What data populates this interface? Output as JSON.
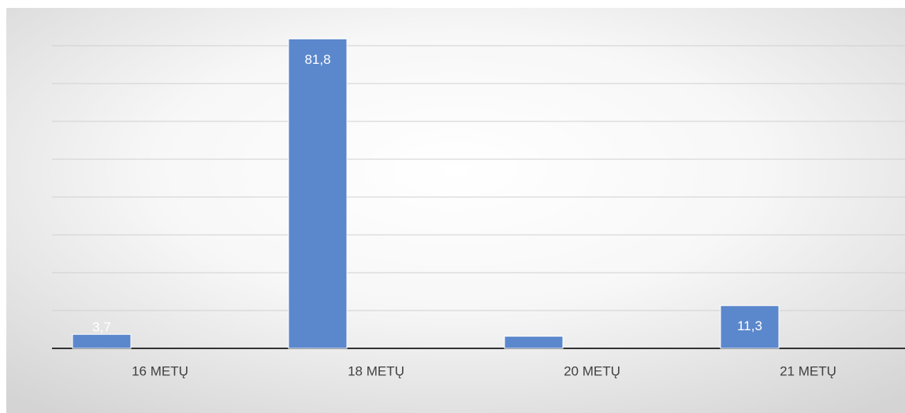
{
  "chart_data": {
    "type": "bar",
    "categories": [
      "16 METŲ",
      "18 METŲ",
      "20 METŲ",
      "21 METŲ"
    ],
    "values": [
      3.7,
      81.8,
      3.2,
      11.3
    ],
    "value_labels": [
      "3,7",
      "81,8",
      null,
      "11,3"
    ],
    "color": "#5b87cc",
    "ylim": [
      0,
      90
    ],
    "yticks": [
      0,
      10,
      20,
      30,
      40,
      50,
      60,
      70,
      80
    ],
    "grid": true
  }
}
